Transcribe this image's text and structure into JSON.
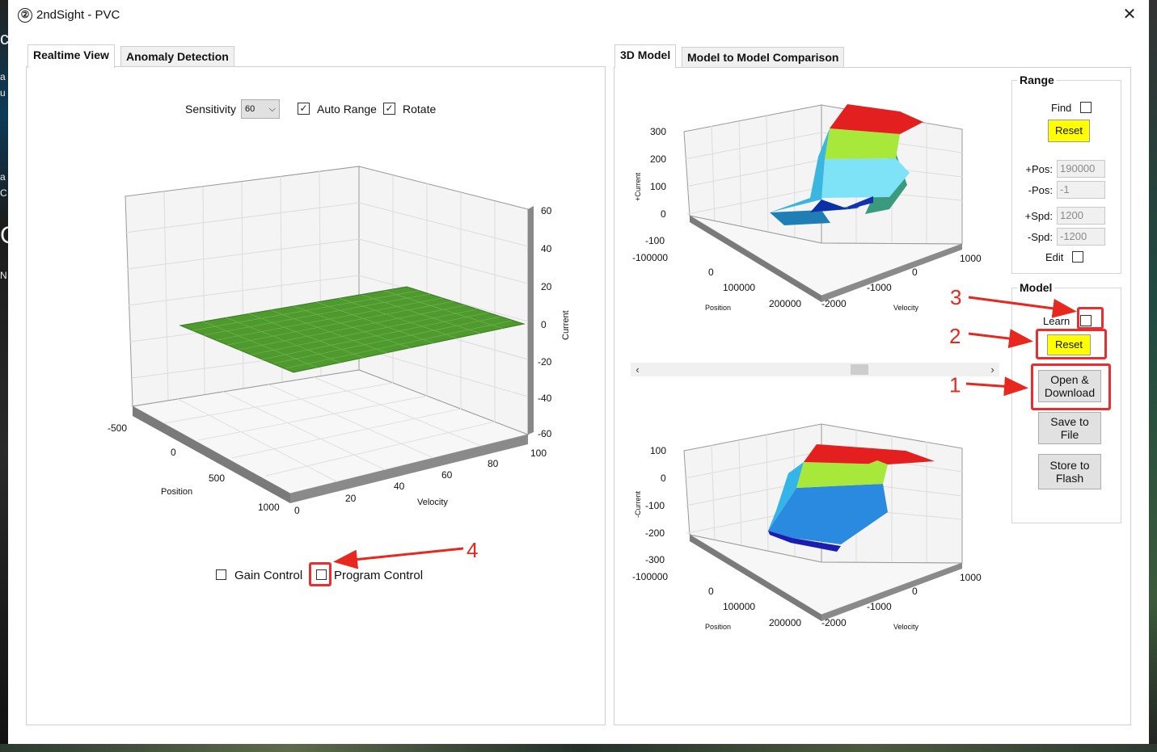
{
  "window": {
    "title": "2ndSight - PVC",
    "app_icon_glyph": "②",
    "close_glyph": "✕"
  },
  "left_panel": {
    "tabs": [
      {
        "label": "Realtime View"
      },
      {
        "label": "Anomaly Detection"
      }
    ],
    "sensitivity_label": "Sensitivity",
    "sensitivity_value": "60",
    "auto_range": {
      "label": "Auto Range",
      "checked": true
    },
    "rotate": {
      "label": "Rotate",
      "checked": true
    },
    "gain_control": {
      "label": "Gain Control",
      "checked": false
    },
    "program_control": {
      "label": "Program Control",
      "checked": false
    },
    "chart": {
      "z_ticks": [
        "60",
        "40",
        "20",
        "0",
        "-20",
        "-40",
        "-60"
      ],
      "z_label": "Current",
      "pos_ticks": [
        "-500",
        "0",
        "500",
        "1000"
      ],
      "pos_label": "Position",
      "vel_ticks": [
        "0",
        "20",
        "40",
        "60",
        "80",
        "100"
      ],
      "vel_label": "Velocity",
      "surface_color": "#4f9a2e"
    }
  },
  "right_panel": {
    "tabs": [
      {
        "label": "3D Model"
      },
      {
        "label": "Model to Model Comparison"
      }
    ],
    "top_chart": {
      "z_label": "+Current",
      "z_ticks": [
        "300",
        "200",
        "100",
        "0",
        "-100"
      ],
      "pos_ticks": [
        "-100000",
        "0",
        "100000",
        "200000"
      ],
      "pos_label": "Position",
      "vel_ticks": [
        "-2000",
        "-1000",
        "0",
        "1000"
      ],
      "vel_label": "Velocity"
    },
    "bottom_chart": {
      "z_label": "-Current",
      "z_ticks": [
        "100",
        "0",
        "-100",
        "-200",
        "-300"
      ],
      "pos_ticks": [
        "-100000",
        "0",
        "100000",
        "200000"
      ],
      "pos_label": "Position",
      "vel_ticks": [
        "-2000",
        "-1000",
        "0",
        "1000"
      ],
      "vel_label": "Velocity"
    },
    "scroll": {
      "left": "‹",
      "right": "›"
    },
    "range_group": {
      "title": "Range",
      "find_label": "Find",
      "reset_label": "Reset",
      "fields": [
        {
          "label": "+Pos:",
          "value": "190000"
        },
        {
          "label": "-Pos:",
          "value": "-1"
        },
        {
          "label": "+Spd:",
          "value": "1200"
        },
        {
          "label": "-Spd:",
          "value": "-1200"
        }
      ],
      "edit_label": "Edit"
    },
    "model_group": {
      "title": "Model",
      "learn_label": "Learn",
      "reset_label": "Reset",
      "open_download_label": "Open &\nDownload",
      "save_file_label": "Save to\nFile",
      "store_flash_label": "Store to\nFlash"
    },
    "callouts": [
      "1",
      "2",
      "3",
      "4"
    ]
  },
  "colors": {
    "highlight": "#ffff00",
    "annotation": "#e8281f"
  }
}
